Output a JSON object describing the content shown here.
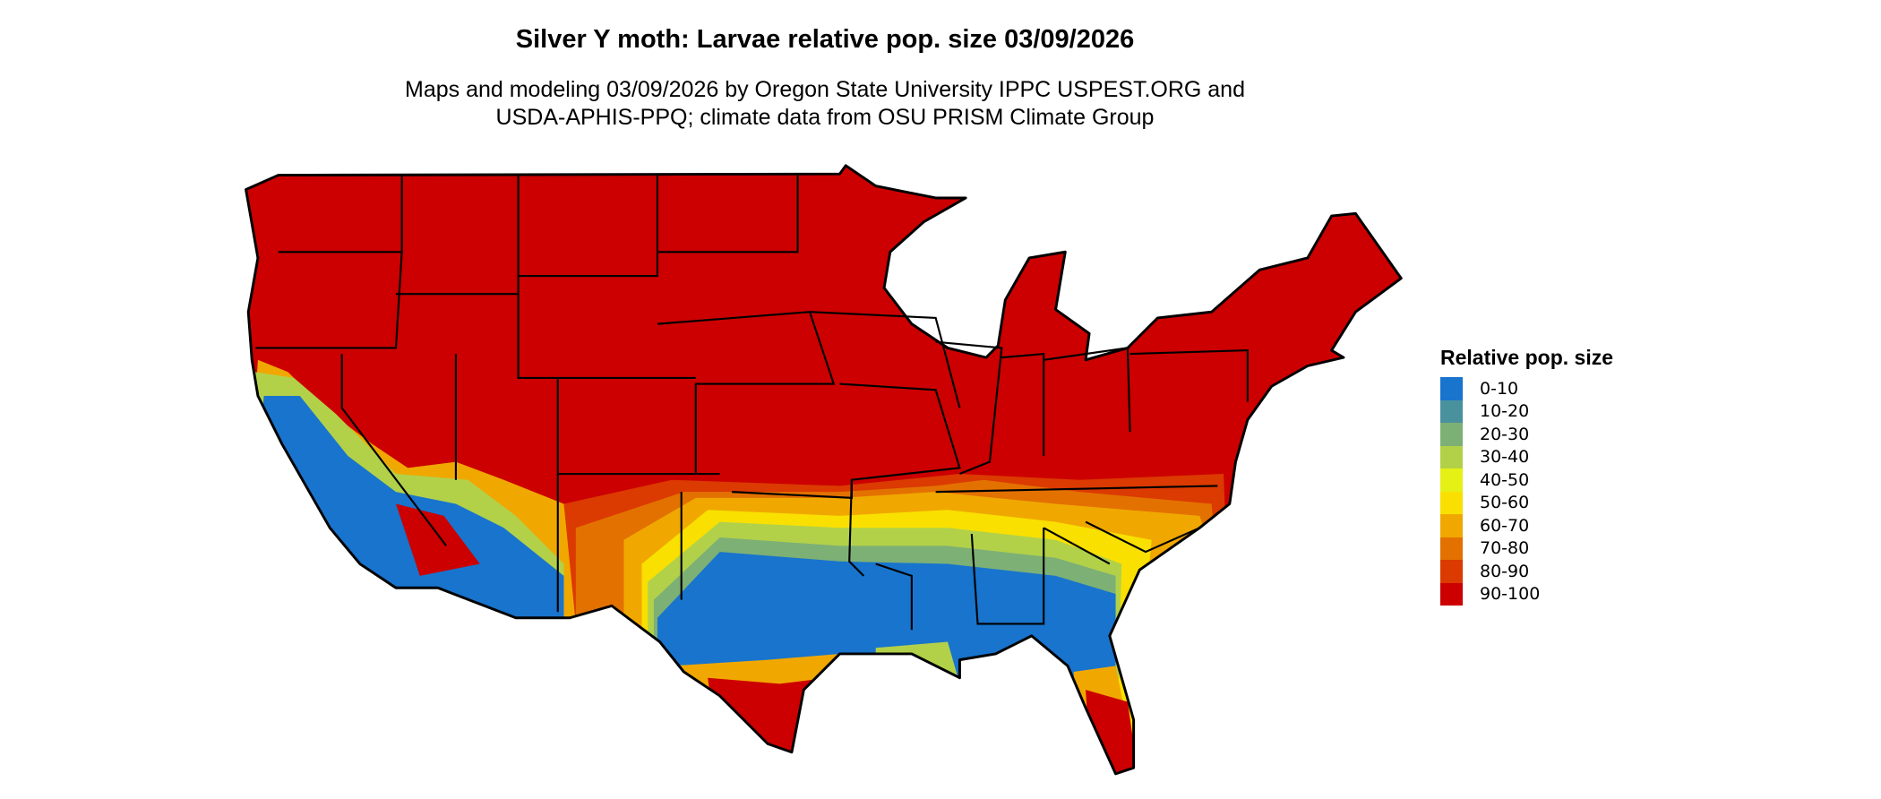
{
  "title": "Silver Y moth: Larvae relative pop. size 03/09/2026",
  "subtitle_line1": "Maps and modeling 03/09/2026 by Oregon State University IPPC USPEST.ORG and",
  "subtitle_line2": "USDA-APHIS-PPQ; climate data from OSU PRISM Climate Group",
  "legend": {
    "title": "Relative pop. size",
    "items": [
      {
        "label": "0-10",
        "color": "#1874CD"
      },
      {
        "label": "10-20",
        "color": "#4A919E"
      },
      {
        "label": "20-30",
        "color": "#7DB075"
      },
      {
        "label": "30-40",
        "color": "#B2D149"
      },
      {
        "label": "40-50",
        "color": "#E5F015"
      },
      {
        "label": "50-60",
        "color": "#F9E000"
      },
      {
        "label": "60-70",
        "color": "#F0A800"
      },
      {
        "label": "70-80",
        "color": "#E37100"
      },
      {
        "label": "80-90",
        "color": "#DB3A00"
      },
      {
        "label": "90-100",
        "color": "#CC0000"
      }
    ]
  }
}
